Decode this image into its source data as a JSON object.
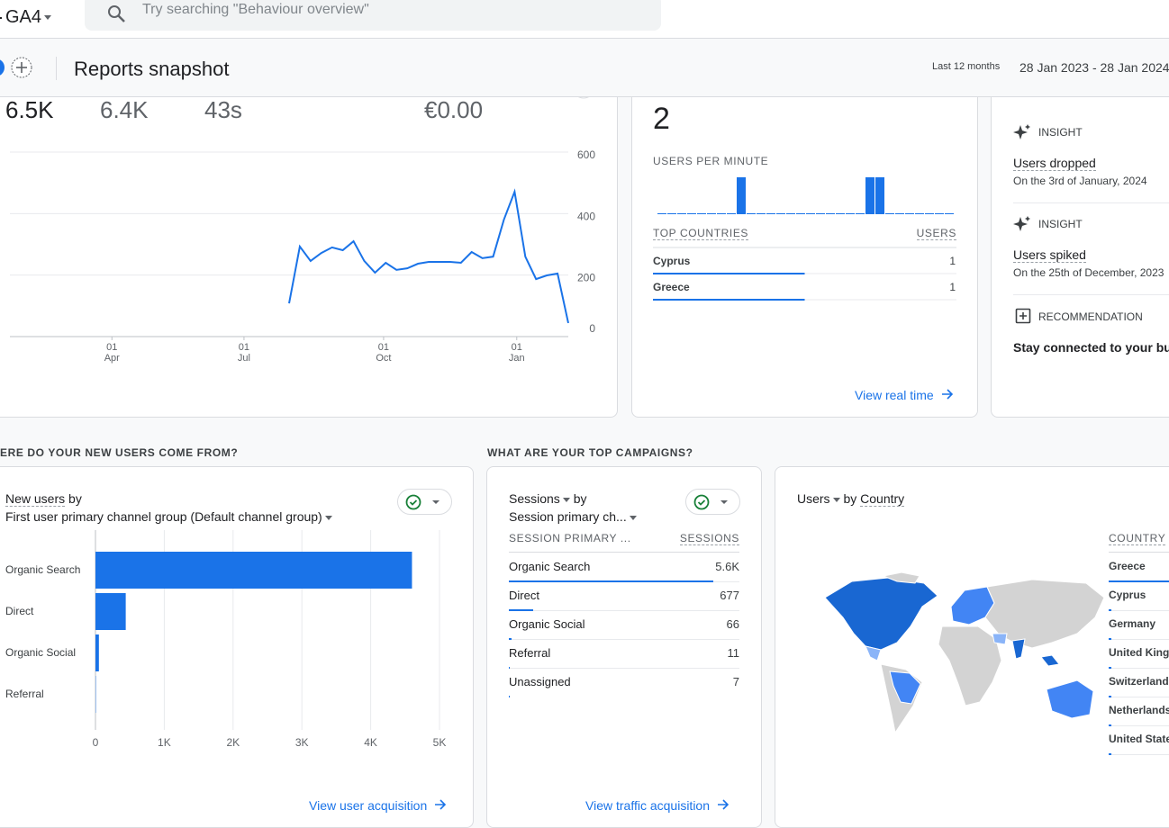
{
  "header": {
    "product": "GA4",
    "search_placeholder": "Try searching \"Behaviour overview\"",
    "title": "Reports snapshot",
    "date_range_label": "Last 12 months",
    "date_range": "28 Jan 2023 - 28 Jan 2024"
  },
  "overview": {
    "metrics": [
      "6.5K",
      "6.4K",
      "43s",
      "€0.00"
    ],
    "chart": {
      "type": "line",
      "x": [
        26,
        27,
        28,
        29,
        30,
        31,
        32,
        33,
        34,
        35,
        36,
        37,
        38,
        39,
        40,
        41,
        42,
        43,
        44,
        45,
        46,
        47,
        48,
        49,
        50,
        51,
        52
      ],
      "values": [
        108,
        293,
        246,
        272,
        290,
        281,
        310,
        246,
        208,
        240,
        217,
        222,
        237,
        243,
        243,
        243,
        240,
        275,
        255,
        260,
        380,
        471,
        260,
        187,
        199,
        205,
        44
      ],
      "color": "#1a73e8",
      "xlim": [
        0,
        52
      ],
      "ylim": [
        0,
        600
      ],
      "yticks": [
        0,
        200,
        400,
        600
      ],
      "xticks": [
        {
          "value": 9.5,
          "label": "01",
          "sublabel": "Apr"
        },
        {
          "value": 21.8,
          "label": "01",
          "sublabel": "Jul"
        },
        {
          "value": 34.8,
          "label": "01",
          "sublabel": "Oct"
        },
        {
          "value": 47.2,
          "label": "01",
          "sublabel": "Jan"
        }
      ]
    }
  },
  "realtime": {
    "value": "2",
    "chart_title": "USERS PER MINUTE",
    "chart": {
      "type": "bar",
      "values": [
        0,
        0,
        0,
        0,
        0,
        0,
        0,
        0,
        1,
        0,
        0,
        0,
        0,
        0,
        0,
        0,
        0,
        0,
        0,
        0,
        0,
        1,
        1,
        0,
        0,
        0,
        0,
        0,
        0,
        0
      ],
      "ylim": [
        0,
        1
      ],
      "color": "#1a73e8"
    },
    "table": {
      "headers": [
        "TOP COUNTRIES",
        "USERS"
      ],
      "categories": [
        "Cyprus",
        "Greece"
      ],
      "values": [
        1,
        1
      ]
    },
    "link": "View real time"
  },
  "insights": [
    {
      "tag": "INSIGHT",
      "title": "Users dropped",
      "detail": "On the 3rd of January, 2024"
    },
    {
      "tag": "INSIGHT",
      "title": "Users spiked",
      "detail": "On the 25th of December, 2023"
    },
    {
      "tag": "RECOMMENDATION",
      "title": "Stay connected to your busi"
    }
  ],
  "acquisition": {
    "section_title": "ERE DO YOUR NEW USERS COME FROM?",
    "metric": "New users",
    "by": "by",
    "dimension": "First user primary channel group (Default channel group)",
    "chart": {
      "type": "bar",
      "categories": [
        "Organic Search",
        "Direct",
        "Organic Social",
        "Referral"
      ],
      "values": [
        4600,
        440,
        50,
        5
      ],
      "color": "#1a73e8",
      "xlim": [
        0,
        5000
      ],
      "xticks": [
        0,
        {
          "value": 1000,
          "label": "1K"
        },
        {
          "value": 2000,
          "label": "2K"
        },
        {
          "value": 3000,
          "label": "3K"
        },
        {
          "value": 4000,
          "label": "4K"
        },
        {
          "value": 5000,
          "label": "5K"
        }
      ]
    },
    "link": "View user acquisition"
  },
  "campaigns": {
    "section_title": "WHAT ARE YOUR TOP CAMPAIGNS?",
    "metric": "Sessions",
    "by": "by",
    "dimension": "Session primary ch...",
    "headers": [
      "SESSION PRIMARY ...",
      "SESSIONS"
    ],
    "categories": [
      "Organic Search",
      "Direct",
      "Organic Social",
      "Referral",
      "Unassigned"
    ],
    "values": [
      5600,
      677,
      66,
      11,
      7
    ],
    "value_labels": [
      "5.6K",
      "677",
      "66",
      "11",
      "7"
    ],
    "link": "View traffic acquisition"
  },
  "countries": {
    "metric": "Users",
    "by": "by",
    "dimension": "Country",
    "header": "COUNTRY",
    "rows": [
      "Greece",
      "Cyprus",
      "Germany",
      "United King",
      "Switzerland",
      "Netherlands",
      "United State"
    ]
  }
}
